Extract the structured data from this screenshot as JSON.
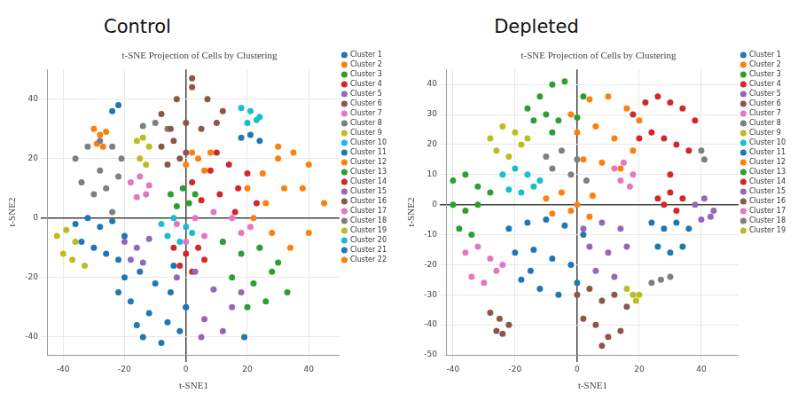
{
  "chart_data": [
    {
      "type": "scatter",
      "panel_label": "Control",
      "title": "t-SNE Projection of Cells by Clustering",
      "x_label": "t-SNE1",
      "y_label": "t-SNE2",
      "xlim": [
        -45,
        50
      ],
      "ylim": [
        -46,
        50
      ],
      "xticks": [
        -40,
        -20,
        0,
        20,
        40
      ],
      "yticks": [
        -40,
        -20,
        0,
        20,
        40
      ],
      "grid": true,
      "legend": "right",
      "marker": "circle",
      "series": [
        {
          "name": "Cluster 1",
          "color": "#1f77b4",
          "x": [
            -20,
            -15,
            -10,
            -5,
            0,
            -18,
            -12,
            -6,
            -2,
            -22,
            -14,
            -8,
            -16,
            -4
          ],
          "y": [
            -20,
            -18,
            -22,
            -25,
            -30,
            -28,
            -32,
            -35,
            -38,
            -25,
            -40,
            -42,
            -36,
            -16
          ]
        },
        {
          "name": "Cluster 2",
          "color": "#ff7f0e",
          "x": [
            20,
            25,
            30,
            35,
            40,
            45,
            22,
            28,
            34,
            40,
            26,
            32,
            38,
            30
          ],
          "y": [
            10,
            15,
            20,
            22,
            18,
            5,
            0,
            -5,
            -10,
            -5,
            5,
            10,
            10,
            24
          ]
        },
        {
          "name": "Cluster 3",
          "color": "#2ca02c",
          "x": [
            12,
            18,
            24,
            30,
            15,
            22,
            28,
            33,
            20,
            26
          ],
          "y": [
            -8,
            -12,
            -10,
            -15,
            -20,
            -22,
            -18,
            -25,
            -30,
            -28
          ]
        },
        {
          "name": "Cluster 4",
          "color": "#d62728",
          "x": [
            2,
            8,
            14,
            20,
            5,
            11,
            17,
            23,
            10,
            16
          ],
          "y": [
            12,
            16,
            18,
            15,
            6,
            8,
            10,
            5,
            22,
            2
          ]
        },
        {
          "name": "Cluster 5",
          "color": "#9467bd",
          "x": [
            -3,
            3,
            9,
            15,
            0,
            6,
            12,
            18,
            5
          ],
          "y": [
            -20,
            -18,
            -24,
            -30,
            -30,
            -34,
            -38,
            -25,
            -40
          ]
        },
        {
          "name": "Cluster 6",
          "color": "#8c564b",
          "x": [
            -8,
            -3,
            2,
            7,
            12,
            -5,
            0,
            5,
            10,
            2
          ],
          "y": [
            35,
            40,
            44,
            40,
            36,
            30,
            32,
            30,
            32,
            47
          ]
        },
        {
          "name": "Cluster 7",
          "color": "#e377c2",
          "x": [
            -3,
            3,
            9,
            15,
            21,
            0,
            6,
            12,
            18,
            24
          ],
          "y": [
            -2,
            0,
            2,
            0,
            -3,
            -8,
            -6,
            -8,
            -5,
            -10
          ]
        },
        {
          "name": "Cluster 8",
          "color": "#7f7f7f",
          "x": [
            -36,
            -32,
            -28,
            -24,
            -21,
            -34,
            -30,
            -26,
            -22,
            -28
          ],
          "y": [
            20,
            24,
            26,
            24,
            20,
            12,
            8,
            10,
            14,
            16
          ]
        },
        {
          "name": "Cluster 9",
          "color": "#bcbd22",
          "x": [
            -16,
            -14,
            -12,
            -15,
            -13
          ],
          "y": [
            26,
            27,
            24,
            20,
            18
          ]
        },
        {
          "name": "Cluster 10",
          "color": "#17becf",
          "x": [
            18,
            21,
            24,
            20,
            23
          ],
          "y": [
            37,
            36,
            34,
            32,
            33
          ]
        },
        {
          "name": "Cluster 11",
          "color": "#1f77b4",
          "x": [
            -36,
            -32,
            -28,
            -24,
            -20,
            -34,
            -30,
            -26,
            -22
          ],
          "y": [
            -2,
            0,
            -3,
            -1,
            -6,
            -8,
            -10,
            -12,
            -14
          ]
        },
        {
          "name": "Cluster 12",
          "color": "#ff7f0e",
          "x": [
            0,
            4,
            8,
            6,
            2
          ],
          "y": [
            18,
            20,
            22,
            16,
            22
          ]
        },
        {
          "name": "Cluster 13",
          "color": "#2ca02c",
          "x": [
            -5,
            -1,
            3,
            -3,
            1
          ],
          "y": [
            8,
            10,
            8,
            4,
            5
          ]
        },
        {
          "name": "Cluster 14",
          "color": "#d62728",
          "x": [
            -4,
            0,
            4,
            -2,
            2,
            6
          ],
          "y": [
            -10,
            -12,
            -10,
            -16,
            -18,
            -14
          ]
        },
        {
          "name": "Cluster 15",
          "color": "#9467bd",
          "x": [
            -20,
            -16,
            -12,
            -18,
            -14
          ],
          "y": [
            -8,
            -10,
            -7,
            -14,
            -15
          ]
        },
        {
          "name": "Cluster 16",
          "color": "#8c564b",
          "x": [
            -8,
            -4,
            0,
            -6,
            -2
          ],
          "y": [
            24,
            26,
            22,
            18,
            20
          ]
        },
        {
          "name": "Cluster 17",
          "color": "#e377c2",
          "x": [
            -18,
            -15,
            -12,
            -16,
            -13
          ],
          "y": [
            12,
            14,
            11,
            7,
            8
          ]
        },
        {
          "name": "Cluster 18",
          "color": "#7f7f7f",
          "x": [
            -14,
            -10,
            -24,
            -6
          ],
          "y": [
            31,
            32,
            2,
            30
          ]
        },
        {
          "name": "Cluster 19",
          "color": "#bcbd22",
          "x": [
            -42,
            -39,
            -36,
            -40,
            -37,
            -33
          ],
          "y": [
            -6,
            -4,
            -8,
            -12,
            -14,
            -16
          ]
        },
        {
          "name": "Cluster 20",
          "color": "#17becf",
          "x": [
            -8,
            -4,
            0,
            -6,
            -2,
            2
          ],
          "y": [
            -2,
            0,
            -3,
            -6,
            -8,
            -5
          ]
        },
        {
          "name": "Cluster 21",
          "color": "#1f77b4",
          "x": [
            18,
            21,
            24,
            -24,
            -22,
            19
          ],
          "y": [
            27,
            28,
            26,
            36,
            38,
            -40
          ]
        },
        {
          "name": "Cluster 22",
          "color": "#ff7f0e",
          "x": [
            -30,
            -28,
            -26,
            -29,
            -27
          ],
          "y": [
            30,
            28,
            29,
            25,
            24
          ]
        }
      ]
    },
    {
      "type": "scatter",
      "panel_label": "Depleted",
      "title": "t-SNE Projection of Cells by Clustering",
      "x_label": "t-SNE1",
      "y_label": "t-SNE2",
      "xlim": [
        -42,
        52
      ],
      "ylim": [
        -50,
        45
      ],
      "xticks": [
        -40,
        -20,
        0,
        20,
        40
      ],
      "yticks": [
        -50,
        -40,
        -30,
        -20,
        -10,
        0,
        10,
        20,
        30,
        40
      ],
      "grid": true,
      "legend": "right",
      "marker": "circle",
      "series": [
        {
          "name": "Cluster 1",
          "color": "#1f77b4",
          "x": [
            -22,
            -16,
            -10,
            -4,
            2,
            -20,
            -14,
            -8,
            -2,
            -18,
            -12,
            -6,
            0,
            -15
          ],
          "y": [
            -8,
            -6,
            -5,
            -7,
            -10,
            -16,
            -15,
            -18,
            -20,
            -25,
            -28,
            -30,
            -26,
            -22
          ]
        },
        {
          "name": "Cluster 2",
          "color": "#ff7f0e",
          "x": [
            -2,
            4,
            10,
            16,
            20,
            0,
            6,
            12,
            18,
            2,
            8,
            14
          ],
          "y": [
            30,
            35,
            36,
            32,
            28,
            24,
            26,
            22,
            18,
            15,
            14,
            12
          ]
        },
        {
          "name": "Cluster 3",
          "color": "#2ca02c",
          "x": [
            -16,
            -12,
            -8,
            -4,
            2,
            -14,
            -10,
            -6,
            0,
            -8
          ],
          "y": [
            32,
            36,
            40,
            41,
            36,
            28,
            30,
            28,
            29,
            24
          ]
        },
        {
          "name": "Cluster 4",
          "color": "#d62728",
          "x": [
            18,
            22,
            26,
            30,
            34,
            38,
            20,
            24,
            28,
            32,
            36,
            30
          ],
          "y": [
            30,
            34,
            36,
            34,
            32,
            28,
            22,
            24,
            22,
            20,
            18,
            10
          ]
        },
        {
          "name": "Cluster 5",
          "color": "#9467bd",
          "x": [
            2,
            8,
            14,
            4,
            10,
            16,
            6,
            12
          ],
          "y": [
            -8,
            -6,
            -8,
            -14,
            -16,
            -14,
            -22,
            -24
          ]
        },
        {
          "name": "Cluster 6",
          "color": "#8c564b",
          "x": [
            -28,
            -25,
            -22,
            -26,
            -24
          ],
          "y": [
            -36,
            -38,
            -40,
            -42,
            -43
          ]
        },
        {
          "name": "Cluster 7",
          "color": "#e377c2",
          "x": [
            -36,
            -32,
            -28,
            -24,
            -34,
            -30,
            -26
          ],
          "y": [
            -16,
            -14,
            -18,
            -20,
            -24,
            -26,
            -22
          ]
        },
        {
          "name": "Cluster 8",
          "color": "#7f7f7f",
          "x": [
            -10,
            -5,
            0,
            -8,
            -2,
            3
          ],
          "y": [
            16,
            18,
            15,
            12,
            10,
            8
          ]
        },
        {
          "name": "Cluster 9",
          "color": "#bcbd22",
          "x": [
            -28,
            -24,
            -20,
            -16,
            -26,
            -22,
            -18
          ],
          "y": [
            22,
            26,
            24,
            22,
            18,
            16,
            20
          ]
        },
        {
          "name": "Cluster 10",
          "color": "#17becf",
          "x": [
            -24,
            -20,
            -16,
            -12,
            -22,
            -18,
            -14
          ],
          "y": [
            10,
            12,
            10,
            8,
            5,
            4,
            6
          ]
        },
        {
          "name": "Cluster 11",
          "color": "#1f77b4",
          "x": [
            24,
            28,
            32,
            36,
            26,
            30,
            34
          ],
          "y": [
            -6,
            -8,
            -6,
            -8,
            -14,
            -16,
            -14
          ]
        },
        {
          "name": "Cluster 12",
          "color": "#ff7f0e",
          "x": [
            -10,
            -5,
            0,
            5,
            -8,
            -2,
            4
          ],
          "y": [
            2,
            4,
            0,
            3,
            -3,
            -2,
            -4
          ]
        },
        {
          "name": "Cluster 13",
          "color": "#2ca02c",
          "x": [
            -40,
            -36,
            -32,
            -28,
            -40,
            -36,
            -32,
            -38,
            -34
          ],
          "y": [
            8,
            10,
            6,
            4,
            0,
            -2,
            0,
            -8,
            -10
          ]
        },
        {
          "name": "Cluster 14",
          "color": "#d62728",
          "x": [
            26,
            30,
            34,
            28,
            32
          ],
          "y": [
            2,
            4,
            2,
            0,
            -2
          ]
        },
        {
          "name": "Cluster 15",
          "color": "#9467bd",
          "x": [
            38,
            41,
            44,
            40,
            43
          ],
          "y": [
            0,
            2,
            -2,
            -5,
            -4
          ]
        },
        {
          "name": "Cluster 16",
          "color": "#8c564b",
          "x": [
            0,
            4,
            8,
            12,
            16,
            2,
            6,
            10,
            14,
            8
          ],
          "y": [
            -30,
            -28,
            -32,
            -30,
            -34,
            -38,
            -40,
            -44,
            -42,
            -47
          ]
        },
        {
          "name": "Cluster 17",
          "color": "#e377c2",
          "x": [
            12,
            15,
            18,
            14,
            17
          ],
          "y": [
            12,
            14,
            10,
            8,
            6
          ]
        },
        {
          "name": "Cluster 18",
          "color": "#7f7f7f",
          "x": [
            24,
            27,
            30,
            40,
            41
          ],
          "y": [
            -26,
            -25,
            -24,
            18,
            15
          ]
        },
        {
          "name": "Cluster 19",
          "color": "#bcbd22",
          "x": [
            16,
            18,
            20,
            19
          ],
          "y": [
            -28,
            -30,
            -30,
            -32
          ]
        }
      ]
    }
  ]
}
